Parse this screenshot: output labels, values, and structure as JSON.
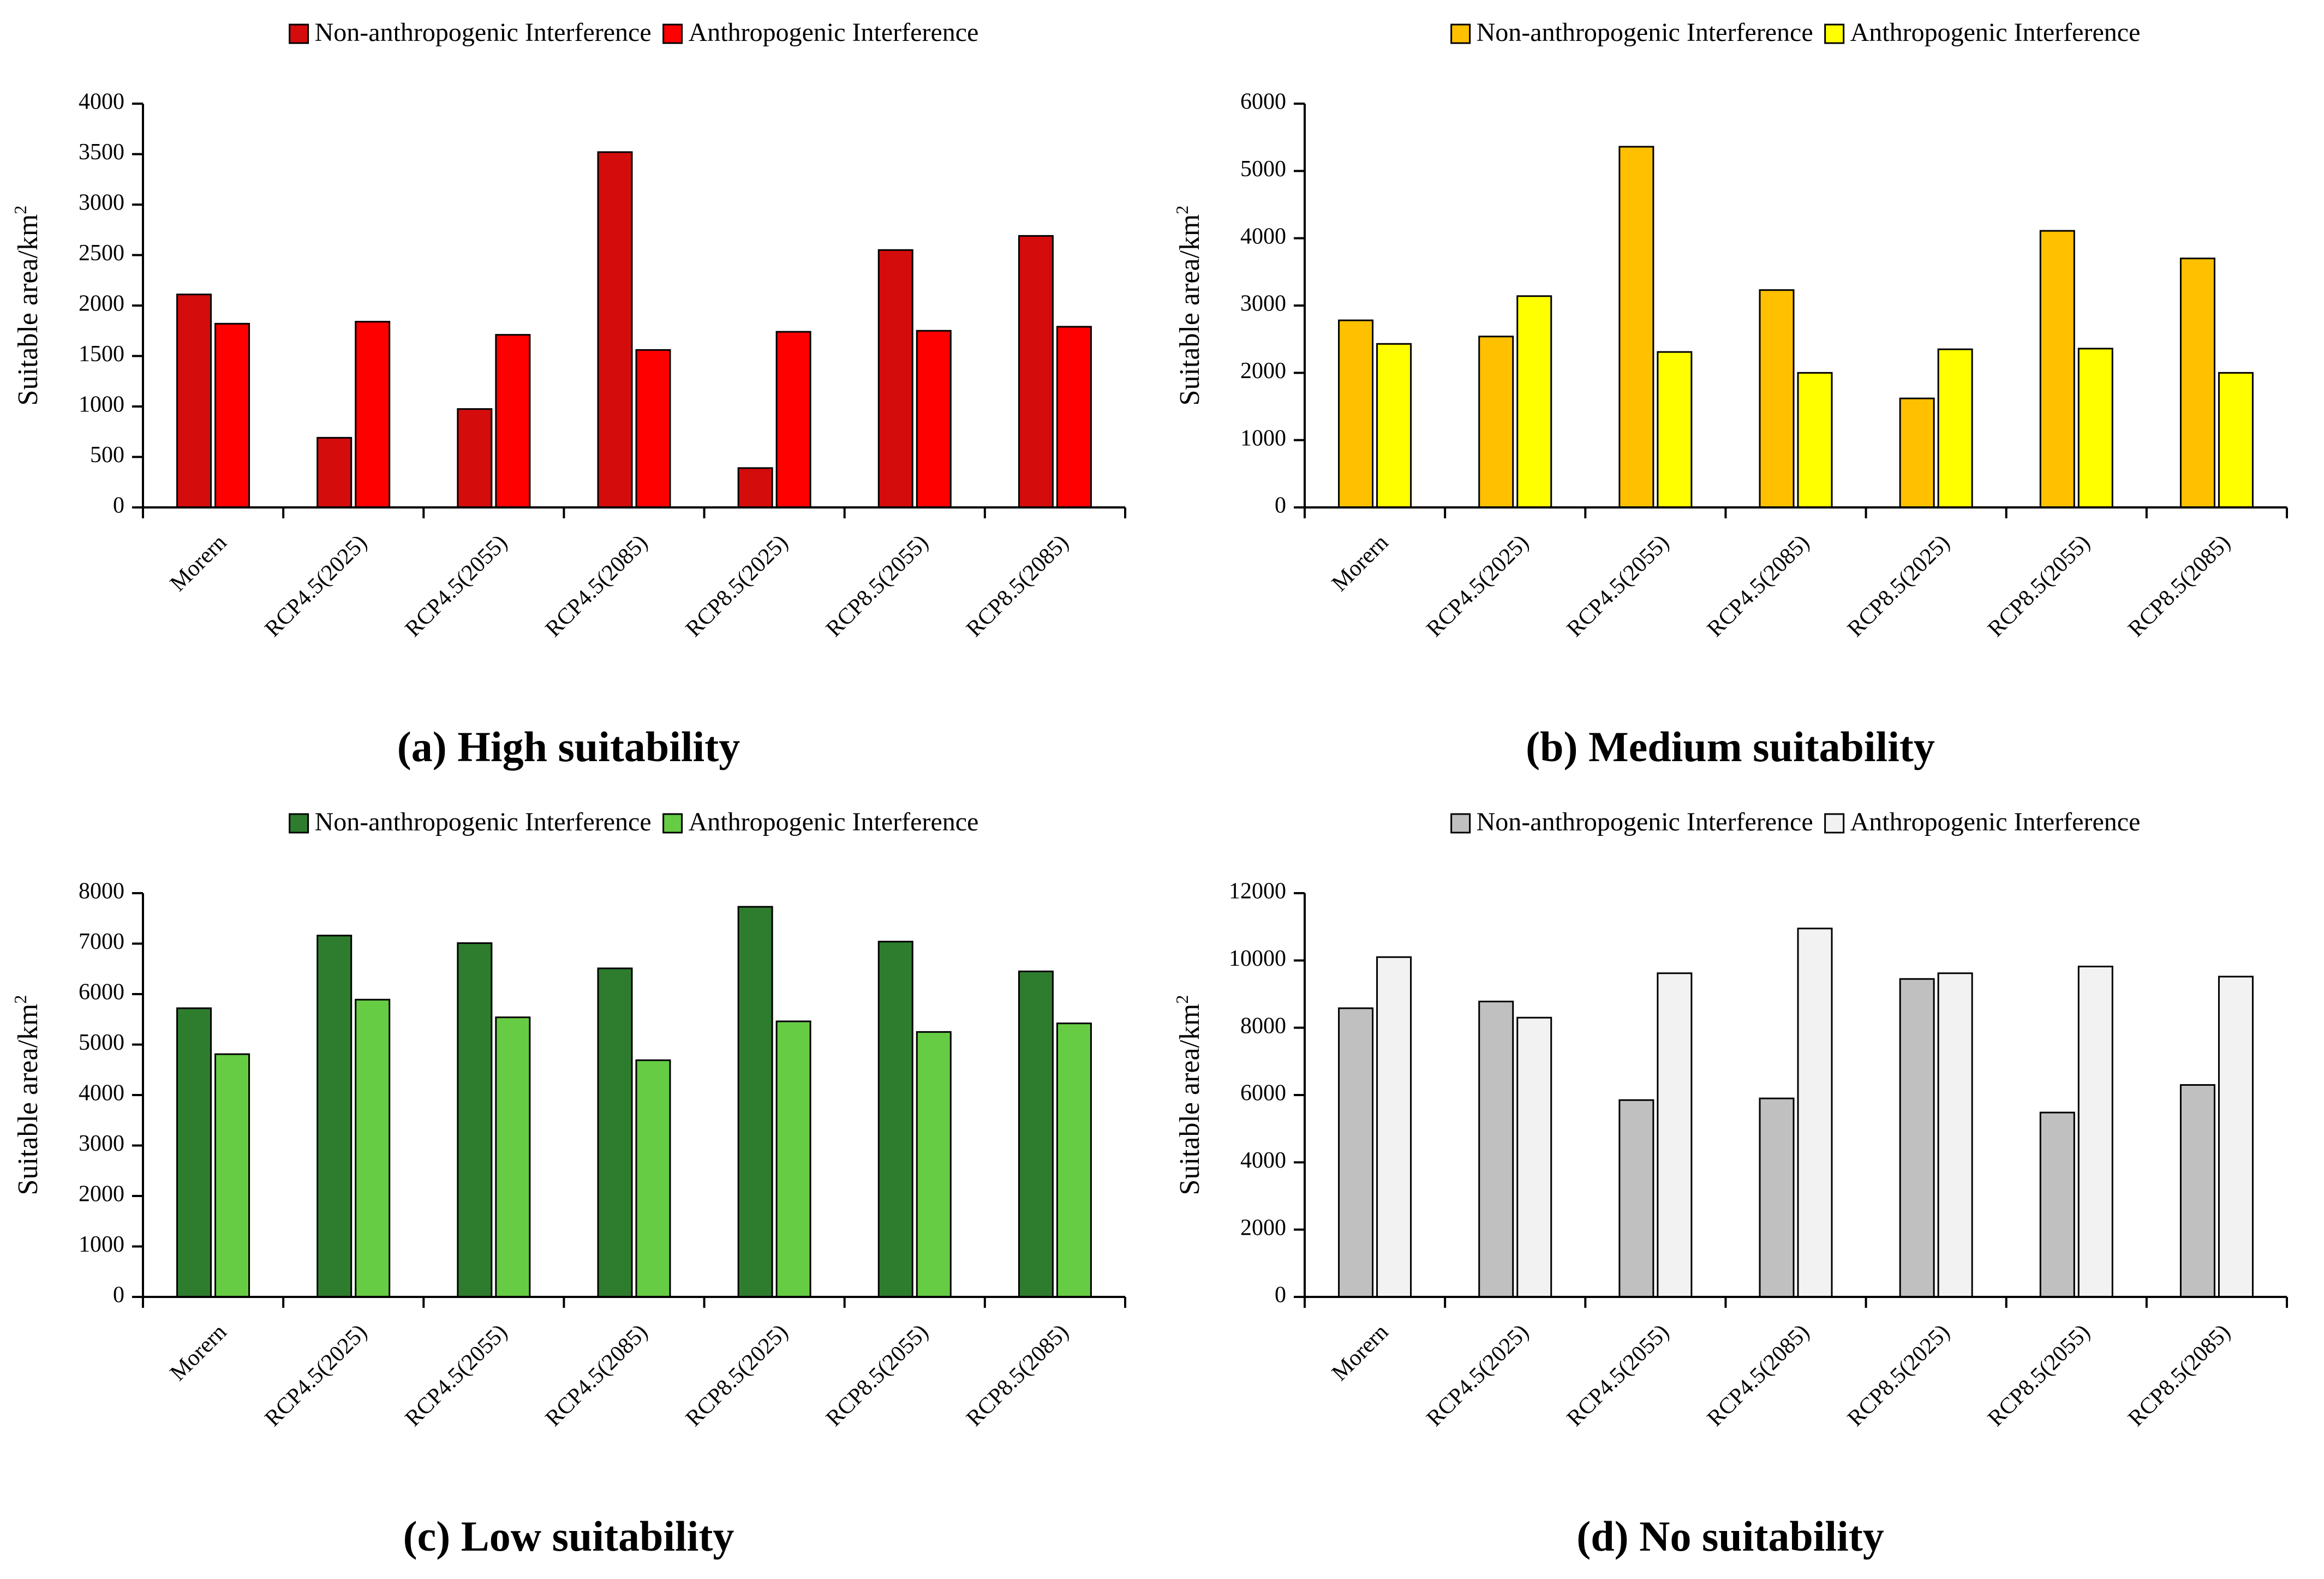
{
  "panels": [
    {
      "id": "a",
      "caption": "(a) High suitability",
      "colors": [
        "#d40c0c",
        "#ff0000"
      ],
      "chart_data": {
        "type": "bar",
        "title": "",
        "ylabel": "Suitable area/km",
        "ylabel_sup": "2",
        "categories": [
          "Morern",
          "RCP4.5(2025)",
          "RCP4.5(2055)",
          "RCP4.5(2085)",
          "RCP8.5(2025)",
          "RCP8.5(2055)",
          "RCP8.5(2085)"
        ],
        "ylim": [
          0,
          4000
        ],
        "yticks": [
          0,
          500,
          1000,
          1500,
          2000,
          2500,
          3000,
          3500,
          4000
        ],
        "legend_position": "top-center",
        "series": [
          {
            "name": "Non-anthropogenic Interference",
            "values": [
              2110,
              690,
              975,
              3520,
              390,
              2550,
              2690
            ]
          },
          {
            "name": "Anthropogenic Interference",
            "values": [
              1820,
              1840,
              1710,
              1560,
              1740,
              1750,
              1790
            ]
          }
        ]
      }
    },
    {
      "id": "b",
      "caption": "(b) Medium suitability",
      "colors": [
        "#ffc000",
        "#ffff00"
      ],
      "chart_data": {
        "type": "bar",
        "title": "",
        "ylabel": "Suitable area/km",
        "ylabel_sup": "2",
        "categories": [
          "Morern",
          "RCP4.5(2025)",
          "RCP4.5(2055)",
          "RCP4.5(2085)",
          "RCP8.5(2025)",
          "RCP8.5(2055)",
          "RCP8.5(2085)"
        ],
        "ylim": [
          0,
          6000
        ],
        "yticks": [
          0,
          1000,
          2000,
          3000,
          4000,
          5000,
          6000
        ],
        "legend_position": "top-center",
        "series": [
          {
            "name": "Non-anthropogenic Interference",
            "values": [
              2780,
              2540,
              5360,
              3230,
              1620,
              4110,
              3700
            ]
          },
          {
            "name": "Anthropogenic Interference",
            "values": [
              2430,
              3140,
              2310,
              2000,
              2350,
              2360,
              2000
            ]
          }
        ]
      }
    },
    {
      "id": "c",
      "caption": "(c) Low suitability",
      "colors": [
        "#2e7d2e",
        "#66cc44"
      ],
      "chart_data": {
        "type": "bar",
        "title": "",
        "ylabel": "Suitable area/km",
        "ylabel_sup": "2",
        "categories": [
          "Morern",
          "RCP4.5(2025)",
          "RCP4.5(2055)",
          "RCP4.5(2085)",
          "RCP8.5(2025)",
          "RCP8.5(2055)",
          "RCP8.5(2085)"
        ],
        "ylim": [
          0,
          8000
        ],
        "yticks": [
          0,
          1000,
          2000,
          3000,
          4000,
          5000,
          6000,
          7000,
          8000
        ],
        "legend_position": "top-center",
        "series": [
          {
            "name": "Non-anthropogenic Interference",
            "values": [
              5720,
              7160,
              7010,
              6510,
              7730,
              7040,
              6450
            ]
          },
          {
            "name": "Anthropogenic Interference",
            "values": [
              4810,
              5890,
              5540,
              4690,
              5460,
              5250,
              5420
            ]
          }
        ]
      }
    },
    {
      "id": "d",
      "caption": "(d) No suitability",
      "colors": [
        "#c0c0c0",
        "#f2f2f2"
      ],
      "chart_data": {
        "type": "bar",
        "title": "",
        "ylabel": "Suitable area/km",
        "ylabel_sup": "2",
        "categories": [
          "Morern",
          "RCP4.5(2025)",
          "RCP4.5(2055)",
          "RCP4.5(2085)",
          "RCP8.5(2025)",
          "RCP8.5(2055)",
          "RCP8.5(2085)"
        ],
        "ylim": [
          0,
          12000
        ],
        "yticks": [
          0,
          2000,
          4000,
          6000,
          8000,
          10000,
          12000
        ],
        "legend_position": "top-center",
        "series": [
          {
            "name": "Non-anthropogenic Interference",
            "values": [
              8580,
              8780,
              5850,
              5900,
              9450,
              5480,
              6300
            ]
          },
          {
            "name": "Anthropogenic Interference",
            "values": [
              10100,
              8300,
              9620,
              10950,
              9620,
              9820,
              9520
            ]
          }
        ]
      }
    }
  ]
}
